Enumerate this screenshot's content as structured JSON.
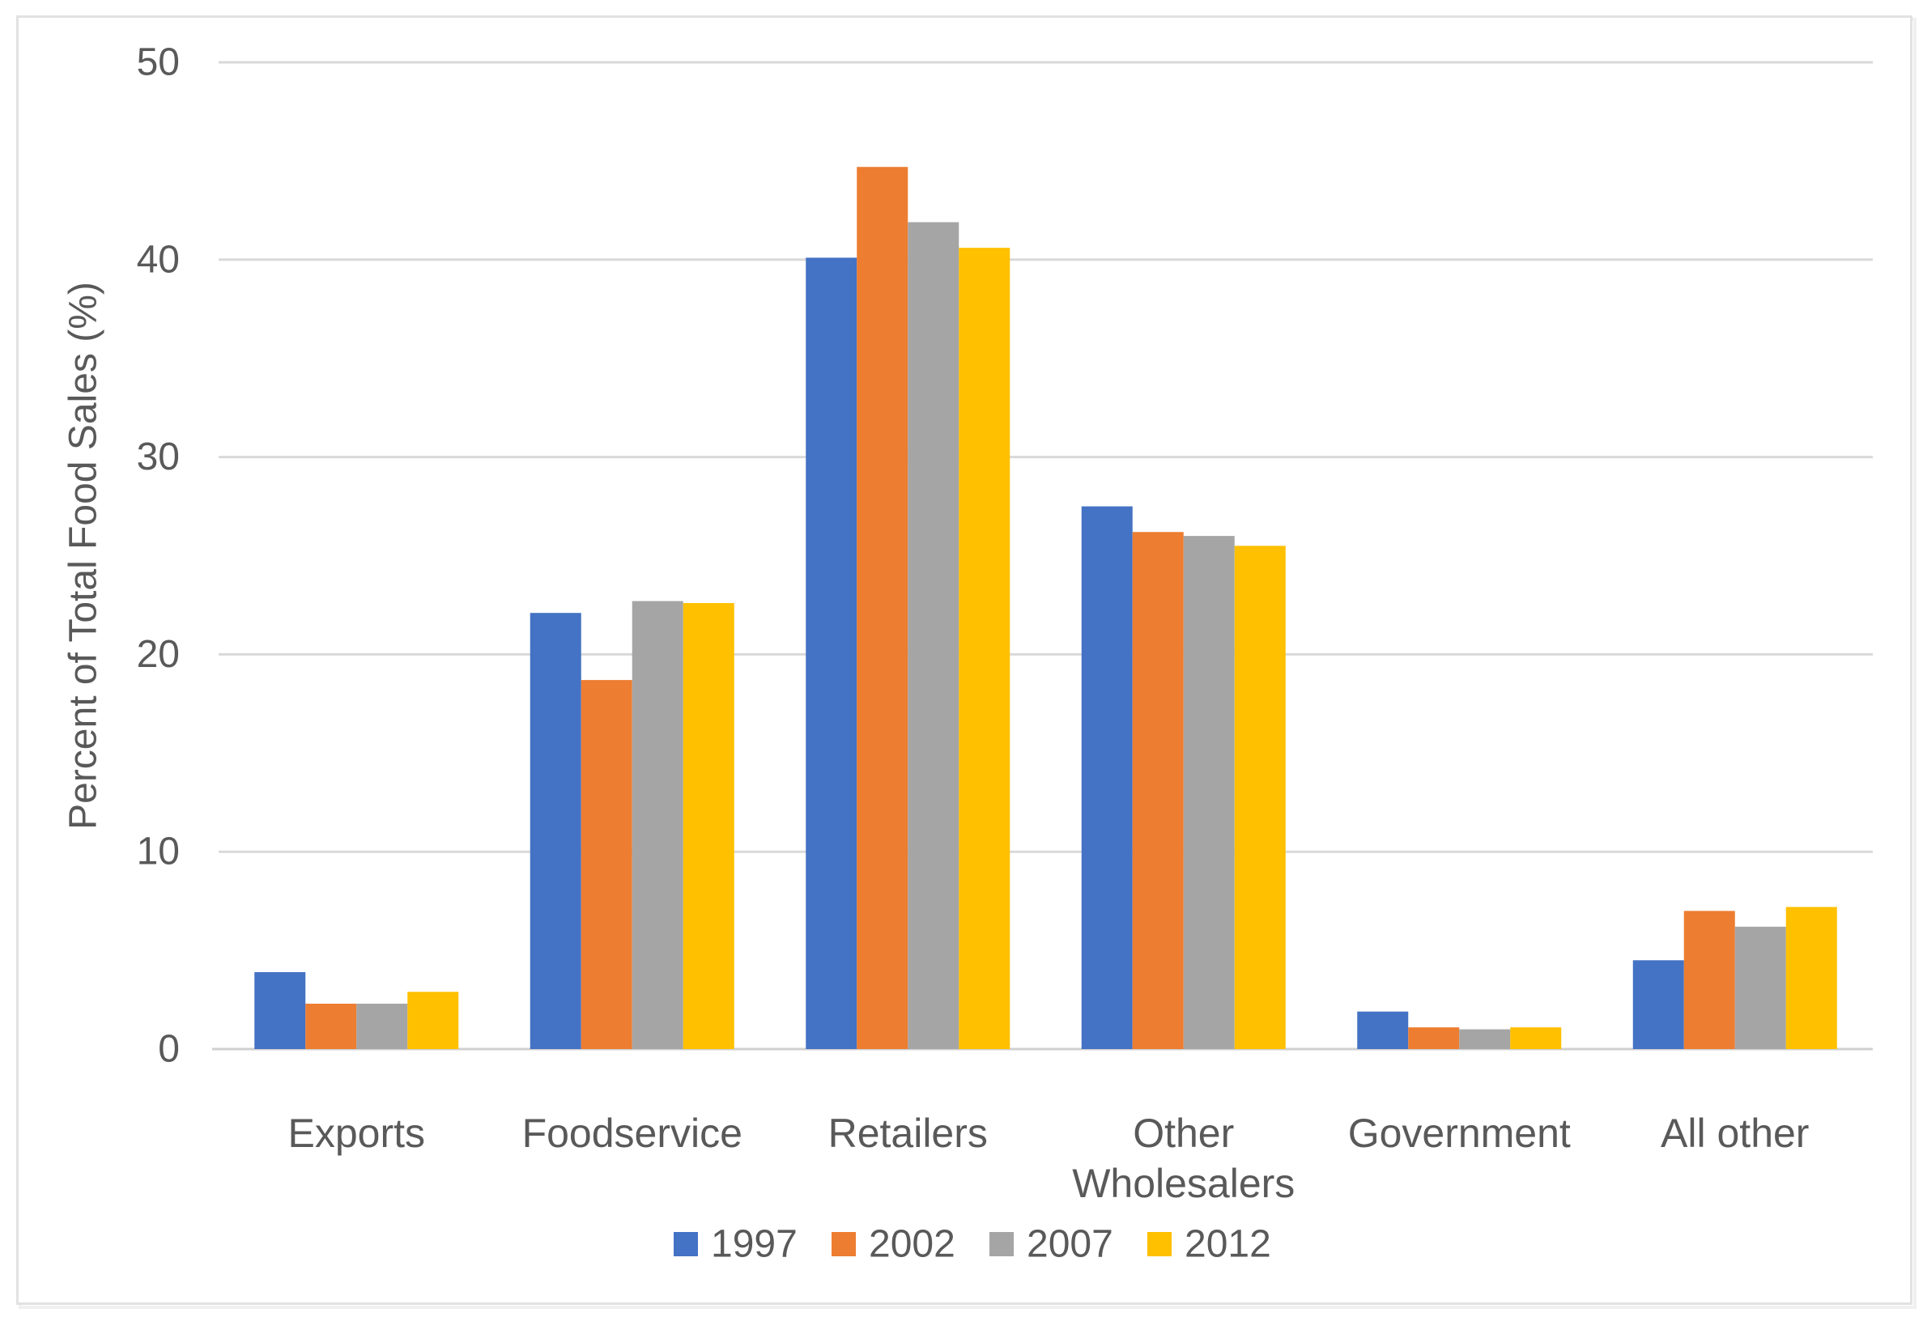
{
  "chart_data": {
    "type": "bar",
    "title": "",
    "xlabel": "",
    "ylabel": "Percent of Total Food Sales (%)",
    "ylim": [
      0,
      50
    ],
    "yticks": [
      0,
      10,
      20,
      30,
      40,
      50
    ],
    "grid": "horizontal-gridlines-on",
    "legend_position": "bottom-center",
    "categories": [
      "Exports",
      "Foodservice",
      "Retailers",
      "Other Wholesalers",
      "Government",
      "All other"
    ],
    "category_label_lines": [
      [
        "Exports"
      ],
      [
        "Foodservice"
      ],
      [
        "Retailers"
      ],
      [
        "Other",
        "Wholesalers"
      ],
      [
        "Government"
      ],
      [
        "All other"
      ]
    ],
    "series": [
      {
        "name": "1997",
        "color": "#4472C4",
        "values": [
          3.9,
          22.1,
          40.1,
          27.5,
          1.9,
          4.5
        ]
      },
      {
        "name": "2002",
        "color": "#ED7D31",
        "values": [
          2.3,
          18.7,
          44.7,
          26.2,
          1.1,
          7.0
        ]
      },
      {
        "name": "2007",
        "color": "#A5A5A5",
        "values": [
          2.3,
          22.7,
          41.9,
          26.0,
          1.0,
          6.2
        ]
      },
      {
        "name": "2012",
        "color": "#FFC000",
        "values": [
          2.9,
          22.6,
          40.6,
          25.5,
          1.1,
          7.2
        ]
      }
    ]
  },
  "style": {
    "text_color": "#595959",
    "gridline_color": "#d9d9d9",
    "axis_line_color": "#d0d0d0",
    "frame_border_color": "#e2e2e2",
    "frame_shadow_color": "#f0f0f0",
    "background": "#ffffff"
  }
}
